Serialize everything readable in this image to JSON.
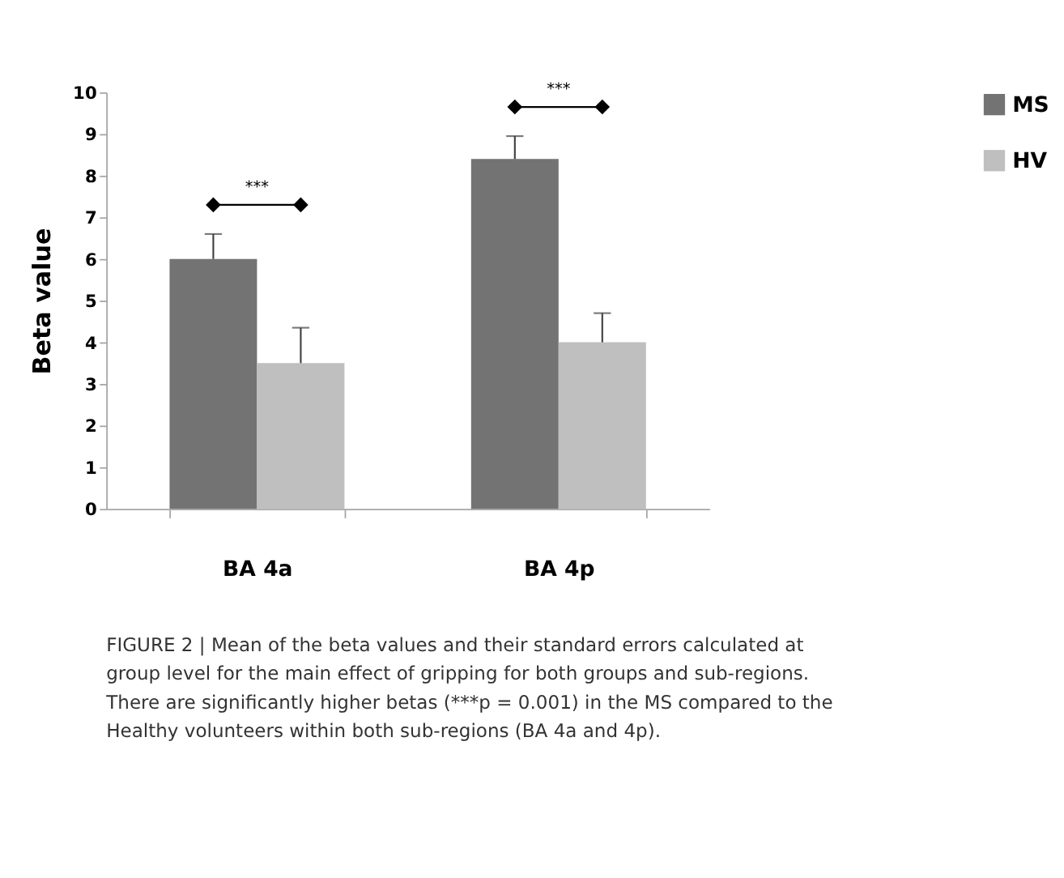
{
  "chart_data": {
    "type": "bar",
    "categories": [
      "BA 4a",
      "BA 4p"
    ],
    "ylabel": "Beta value",
    "ylim": [
      0,
      10
    ],
    "yticks": [
      0,
      1,
      2,
      3,
      4,
      5,
      6,
      7,
      8,
      9,
      10
    ],
    "grid": false,
    "legend": "right",
    "series": [
      {
        "name": "MS",
        "color": "#737373",
        "values": [
          6.0,
          8.4
        ],
        "errors": [
          [
            6.0,
            6.6
          ],
          [
            8.4,
            8.95
          ]
        ]
      },
      {
        "name": "HV",
        "color": "#bfbfbf",
        "values": [
          3.5,
          4.0
        ],
        "errors": [
          [
            3.5,
            4.35
          ],
          [
            4.0,
            4.7
          ]
        ]
      }
    ],
    "annotations": [
      "***",
      "***",
      "FIGURE 2 | Mean of the beta values and their standard errors calculated at group level for the main effect of gripping for both groups and sub-regions. There are significantly higher betas (***p = 0.001) in the MS compared to the Healthy volunteers within both sub-regions (BA 4a and 4p)."
    ]
  }
}
